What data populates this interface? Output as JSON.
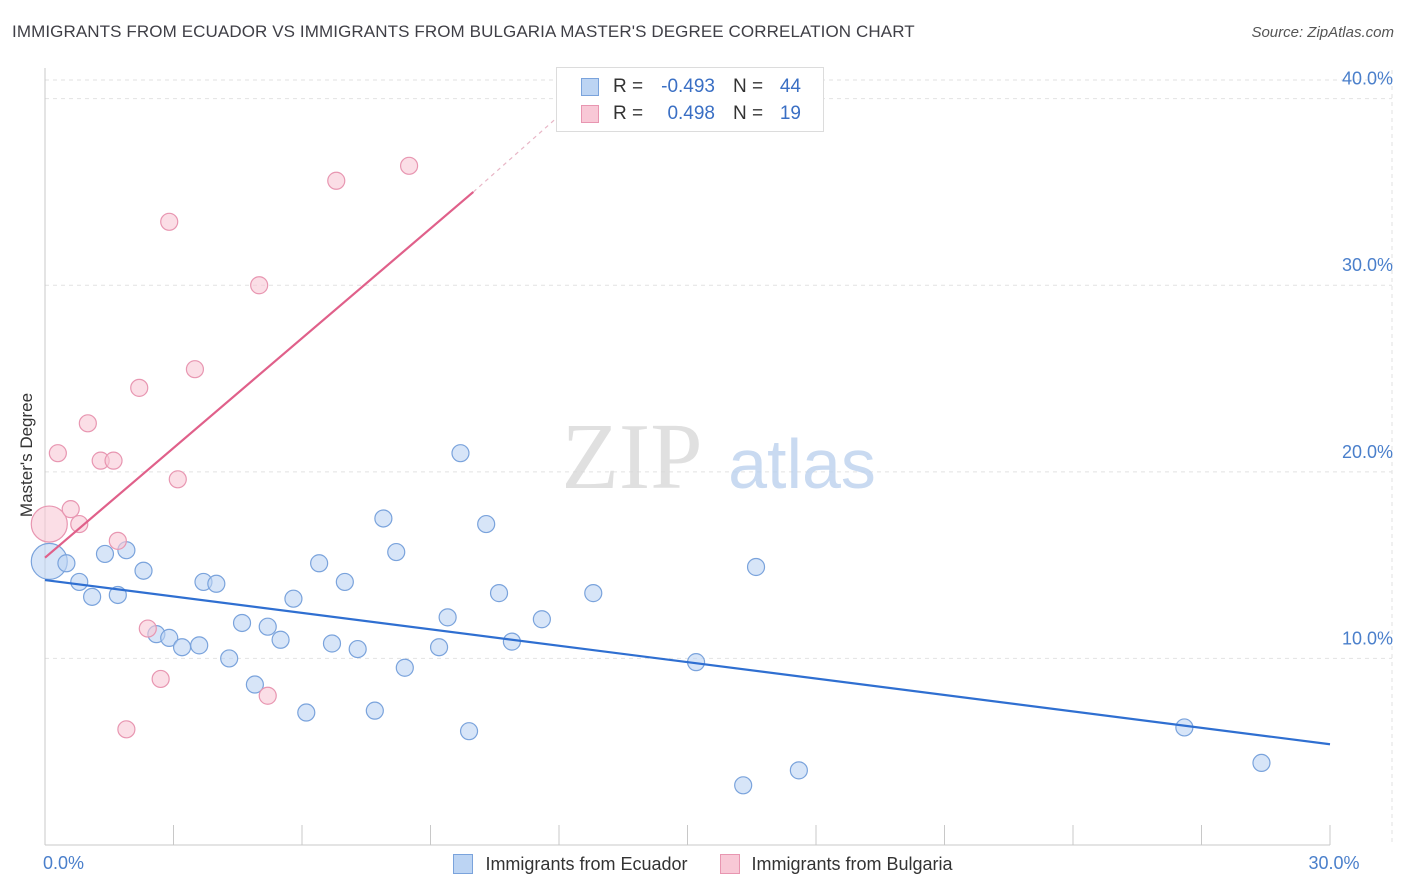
{
  "title": "IMMIGRANTS FROM ECUADOR VS IMMIGRANTS FROM BULGARIA MASTER'S DEGREE CORRELATION CHART",
  "source": "Source: ZipAtlas.com",
  "watermark": {
    "zip": "ZIP",
    "atlas": "atlas"
  },
  "legend": {
    "r_label": "R =",
    "n_label": "N =",
    "ecuador": {
      "r": "-0.493",
      "n": "44"
    },
    "bulgaria": {
      "r": "0.498",
      "n": "19"
    }
  },
  "colors": {
    "ecuador_fill": "#bcd4f3",
    "ecuador_stroke": "#7aa3dc",
    "ecuador_line": "#2f6fd1",
    "bulgaria_fill": "#f8c8d6",
    "bulgaria_stroke": "#e896b1",
    "bulgaria_line": "#e0608a",
    "tick_label": "#4a7fcb",
    "grid": "#e2e2e2"
  },
  "chart_data": {
    "type": "scatter",
    "title": "IMMIGRANTS FROM ECUADOR VS IMMIGRANTS FROM BULGARIA MASTER'S DEGREE CORRELATION CHART",
    "xlabel": "",
    "ylabel": "Master's Degree",
    "xlim": [
      0,
      30
    ],
    "ylim": [
      0,
      41
    ],
    "x_tick_labels": [
      {
        "value": 0,
        "label": "0.0%"
      },
      {
        "value": 30,
        "label": "30.0%"
      }
    ],
    "y_tick_labels": [
      {
        "value": 10,
        "label": "10.0%"
      },
      {
        "value": 20,
        "label": "20.0%"
      },
      {
        "value": 30,
        "label": "30.0%"
      },
      {
        "value": 40,
        "label": "40.0%"
      }
    ],
    "series": [
      {
        "name": "Immigrants from Ecuador",
        "color": "#7aa3dc",
        "points": [
          [
            0.1,
            15.2,
            3
          ],
          [
            0.5,
            15.1,
            1
          ],
          [
            0.8,
            14.1,
            1
          ],
          [
            1.1,
            13.3,
            1
          ],
          [
            1.4,
            15.6,
            1
          ],
          [
            1.7,
            13.4,
            1
          ],
          [
            1.9,
            15.8,
            1
          ],
          [
            2.3,
            14.7,
            1
          ],
          [
            2.6,
            11.3,
            1
          ],
          [
            2.9,
            11.1,
            1
          ],
          [
            3.2,
            10.6,
            1
          ],
          [
            3.6,
            10.7,
            1
          ],
          [
            3.7,
            14.1,
            1
          ],
          [
            4.0,
            14.0,
            1
          ],
          [
            4.3,
            10.0,
            1
          ],
          [
            4.6,
            11.9,
            1
          ],
          [
            4.9,
            8.6,
            1
          ],
          [
            5.2,
            11.7,
            1
          ],
          [
            5.5,
            11.0,
            1
          ],
          [
            5.8,
            13.2,
            1
          ],
          [
            6.1,
            7.1,
            1
          ],
          [
            6.4,
            15.1,
            1
          ],
          [
            6.7,
            10.8,
            1
          ],
          [
            7.0,
            14.1,
            1
          ],
          [
            7.3,
            10.5,
            1
          ],
          [
            7.7,
            7.2,
            1
          ],
          [
            7.9,
            17.5,
            1
          ],
          [
            8.2,
            15.7,
            1
          ],
          [
            8.4,
            9.5,
            1
          ],
          [
            9.4,
            12.2,
            1
          ],
          [
            9.2,
            10.6,
            1
          ],
          [
            9.7,
            21.0,
            1
          ],
          [
            9.9,
            6.1,
            1
          ],
          [
            10.3,
            17.2,
            1
          ],
          [
            10.6,
            13.5,
            1
          ],
          [
            10.9,
            10.9,
            1
          ],
          [
            11.6,
            12.1,
            1
          ],
          [
            12.8,
            13.5,
            1
          ],
          [
            15.2,
            9.8,
            1
          ],
          [
            16.3,
            3.2,
            1
          ],
          [
            16.6,
            14.9,
            1
          ],
          [
            17.6,
            4.0,
            1
          ],
          [
            26.6,
            6.3,
            1
          ],
          [
            28.4,
            4.4,
            1
          ]
        ]
      },
      {
        "name": "Immigrants from Bulgaria",
        "color": "#e896b1",
        "points": [
          [
            0.1,
            17.2,
            3
          ],
          [
            0.3,
            21.0,
            1
          ],
          [
            0.6,
            18.0,
            1
          ],
          [
            0.8,
            17.2,
            1
          ],
          [
            1.0,
            22.6,
            1
          ],
          [
            1.3,
            20.6,
            1
          ],
          [
            1.6,
            20.6,
            1
          ],
          [
            1.7,
            16.3,
            1
          ],
          [
            2.2,
            24.5,
            1
          ],
          [
            2.4,
            11.6,
            1
          ],
          [
            2.7,
            8.9,
            1
          ],
          [
            2.9,
            33.4,
            1
          ],
          [
            3.1,
            19.6,
            1
          ],
          [
            3.5,
            25.5,
            1
          ],
          [
            1.9,
            6.2,
            1
          ],
          [
            5.0,
            30.0,
            1
          ],
          [
            5.2,
            8.0,
            1
          ],
          [
            6.8,
            35.6,
            1
          ],
          [
            8.5,
            36.4,
            1
          ]
        ]
      }
    ],
    "trendlines": [
      {
        "series": "Immigrants from Ecuador",
        "from": [
          0,
          14.2
        ],
        "to": [
          30,
          5.4
        ]
      },
      {
        "series": "Immigrants from Bulgaria",
        "from": [
          0,
          15.4
        ],
        "to": [
          10.0,
          35.0
        ],
        "dashed_to": [
          12.5,
          40.1
        ]
      }
    ],
    "grid": true,
    "legend": [
      "top-center",
      "bottom"
    ]
  }
}
